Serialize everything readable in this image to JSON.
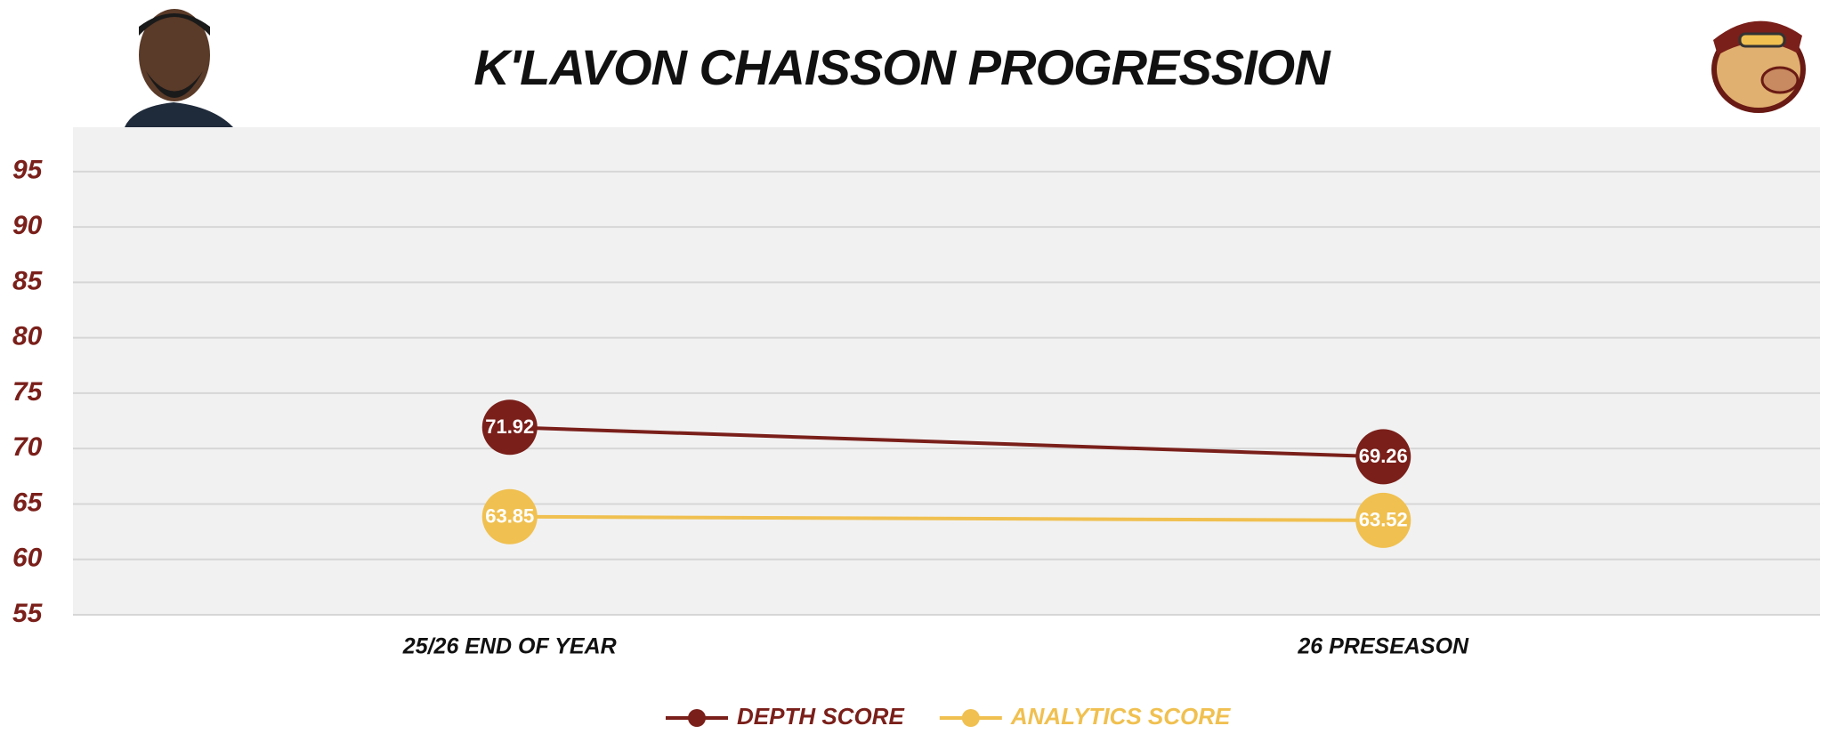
{
  "chart_data": {
    "type": "line",
    "title": "K'LAVON CHAISSON PROGRESSION",
    "categories": [
      "25/26 END OF YEAR",
      "26 PRESEASON"
    ],
    "series": [
      {
        "name": "DEPTH SCORE",
        "color": "#7a1f1a",
        "values": [
          71.92,
          69.26
        ]
      },
      {
        "name": "ANALYTICS SCORE",
        "color": "#f0c050",
        "values": [
          63.85,
          63.52
        ]
      }
    ],
    "ylim": [
      55,
      99
    ],
    "yticks": [
      55,
      60,
      65,
      70,
      75,
      80,
      85,
      90,
      95
    ],
    "grid": true,
    "legend": "bottom"
  }
}
